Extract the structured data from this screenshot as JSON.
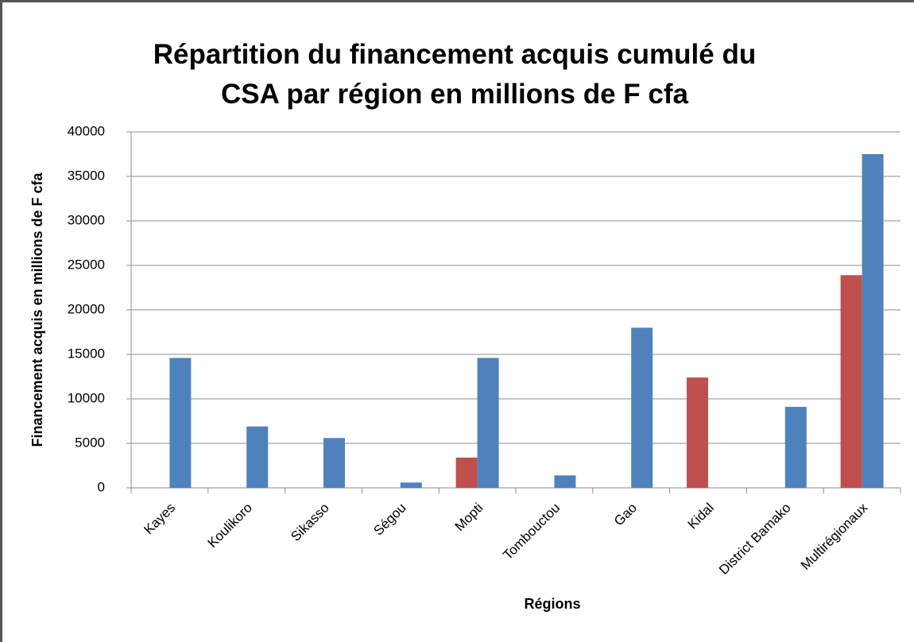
{
  "chart_data": {
    "type": "bar",
    "title": [
      "Répartition du financement acquis cumulé du",
      "CSA par région en millions de F cfa"
    ],
    "x_label": "Régions",
    "y_label": "Financement acquis en millions de F cfa",
    "categories": [
      "Kayes",
      "Koulikoro",
      "Sikasso",
      "Ségou",
      "Mopti",
      "Tombouctou",
      "Gao",
      "Kidal",
      "District Bamako",
      "Multirégionaux"
    ],
    "series": [
      {
        "color": "#c0504d",
        "values": [
          null,
          null,
          null,
          null,
          3400,
          null,
          null,
          12400,
          null,
          23900
        ]
      },
      {
        "color": "#4f81bd",
        "values": [
          14600,
          6900,
          5600,
          600,
          14600,
          1400,
          18000,
          null,
          9100,
          37500
        ]
      }
    ],
    "ylim": [
      0,
      40000
    ],
    "yticks": [
      0,
      5000,
      10000,
      15000,
      20000,
      25000,
      30000,
      35000,
      40000
    ],
    "grid": true
  }
}
